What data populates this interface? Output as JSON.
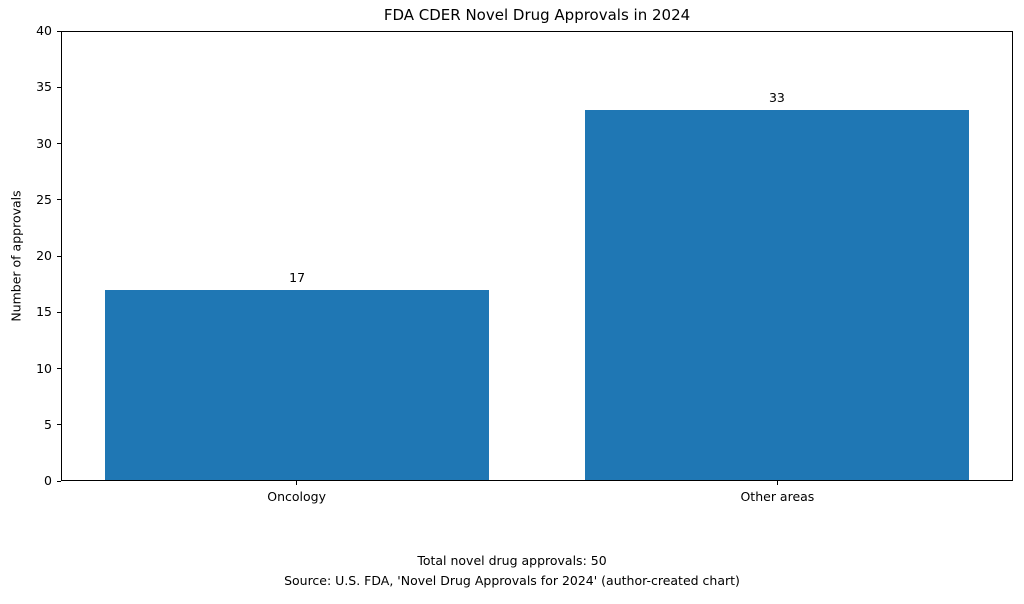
{
  "chart_data": {
    "type": "bar",
    "title": "FDA CDER Novel Drug Approvals in 2024",
    "xlabel": "",
    "ylabel": "Number of approvals",
    "categories": [
      "Oncology",
      "Other areas"
    ],
    "values": [
      17,
      33
    ],
    "bar_value_labels": [
      "17",
      "33"
    ],
    "ylim": [
      0,
      40
    ],
    "yticks": [
      0,
      5,
      10,
      15,
      20,
      25,
      30,
      35,
      40
    ],
    "bar_width_fraction": 0.8,
    "grid": false,
    "legend": "none",
    "colors": {
      "bar": "#1f77b4",
      "text": "#000000",
      "spine": "#000000",
      "background": "#ffffff"
    }
  },
  "footer": {
    "total_line": "Total novel drug approvals: 50",
    "source_line": "Source: U.S. FDA, 'Novel Drug Approvals for 2024' (author-created chart)"
  }
}
